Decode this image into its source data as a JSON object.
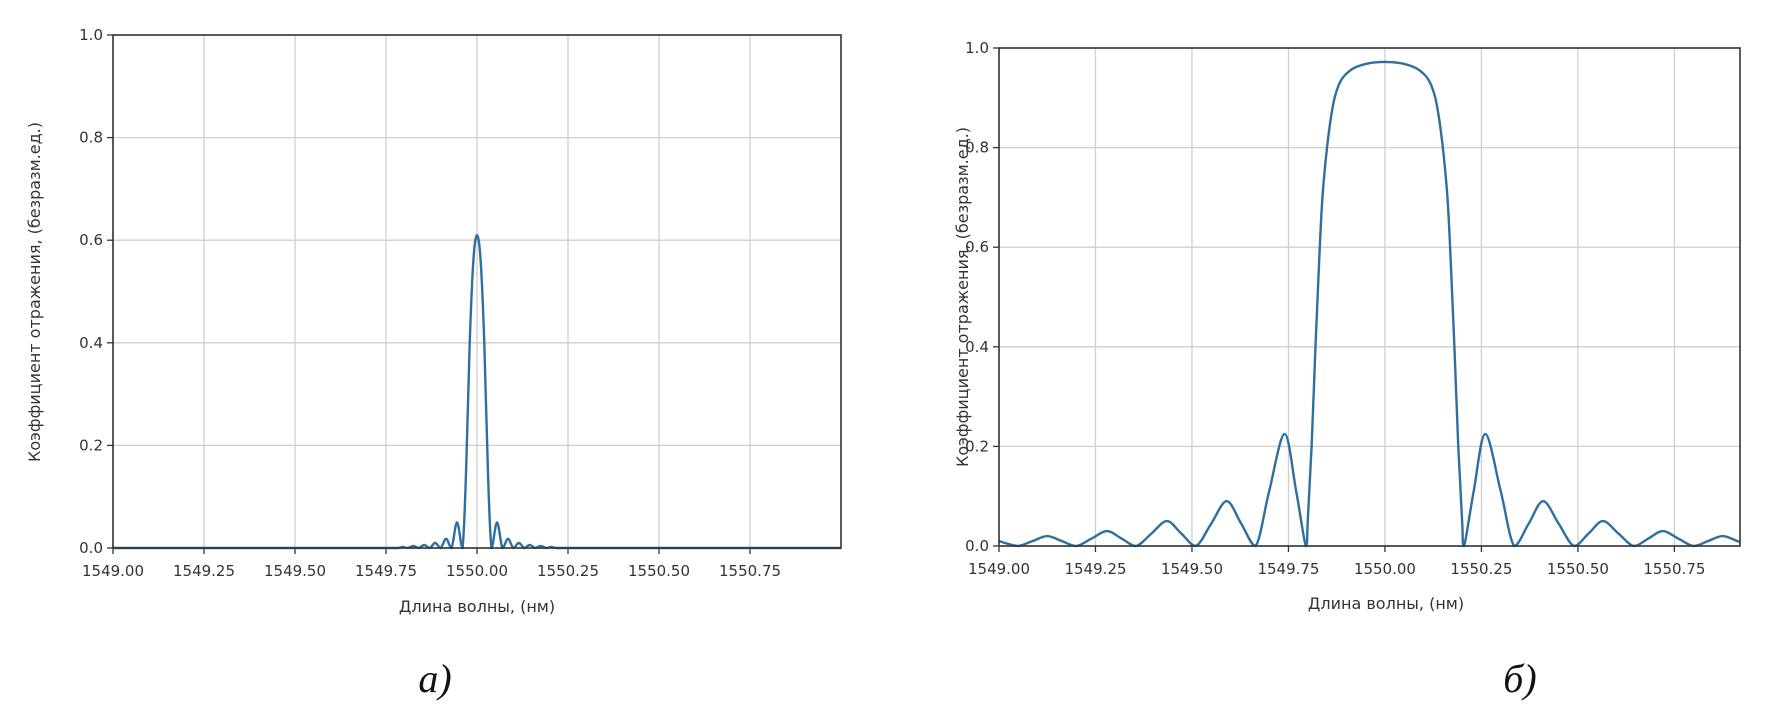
{
  "chart_data": [
    {
      "type": "line",
      "panel_label": "а)",
      "xlabel": "Длина волны, (нм)",
      "ylabel": "Коэффициент отражения, (безразм.ед.)",
      "xlim": [
        1549.0,
        1551.0
      ],
      "ylim": [
        0,
        1.0
      ],
      "xticks": [
        "1549.00",
        "1549.25",
        "1549.50",
        "1549.75",
        "1550.00",
        "1550.25",
        "1550.50",
        "1550.75"
      ],
      "yticks": [
        "0.0",
        "0.2",
        "0.4",
        "0.6",
        "0.8",
        "1.0"
      ],
      "grid": true,
      "line_color": "#2f6f9f",
      "x": [
        1549.0,
        1549.7,
        1549.78,
        1549.795,
        1549.81,
        1549.825,
        1549.84,
        1549.855,
        1549.87,
        1549.885,
        1549.9,
        1549.915,
        1549.93,
        1549.945,
        1549.96,
        1549.97,
        1549.98,
        1549.99,
        1550.0,
        1550.01,
        1550.02,
        1550.03,
        1550.04,
        1550.055,
        1550.07,
        1550.085,
        1550.1,
        1550.115,
        1550.13,
        1550.145,
        1550.16,
        1550.175,
        1550.19,
        1550.205,
        1550.22,
        1550.3,
        1551.0
      ],
      "y": [
        0,
        0,
        0,
        0.002,
        0,
        0.004,
        0,
        0.006,
        0,
        0.01,
        0,
        0.018,
        0,
        0.05,
        0,
        0.15,
        0.4,
        0.56,
        0.61,
        0.56,
        0.4,
        0.15,
        0,
        0.05,
        0,
        0.018,
        0,
        0.01,
        0,
        0.006,
        0,
        0.004,
        0,
        0.002,
        0,
        0,
        0
      ]
    },
    {
      "type": "line",
      "panel_label": "б)",
      "xlabel": "Длина волны, (нм)",
      "ylabel": "Коэффициент отражения, (безразм.ед.)",
      "xlim": [
        1549.0,
        1550.92
      ],
      "ylim": [
        0,
        1.0
      ],
      "xticks": [
        "1549.00",
        "1549.25",
        "1549.50",
        "1549.75",
        "1550.00",
        "1550.25",
        "1550.50",
        "1550.75"
      ],
      "yticks": [
        "0.0",
        "0.2",
        "0.4",
        "0.6",
        "0.8",
        "1.0"
      ],
      "grid": true,
      "line_color": "#2f6f9f",
      "x": [
        1549.0,
        1549.025,
        1549.05,
        1549.0875,
        1549.125,
        1549.1625,
        1549.2,
        1549.24,
        1549.28,
        1549.3175,
        1549.355,
        1549.395,
        1549.435,
        1549.4725,
        1549.51,
        1549.55,
        1549.59,
        1549.6275,
        1549.665,
        1549.7,
        1549.74,
        1549.77,
        1549.795,
        1549.8,
        1549.81,
        1549.82,
        1549.83,
        1549.84,
        1549.86,
        1549.88,
        1549.91,
        1549.95,
        1550.0,
        1550.05,
        1550.09,
        1550.12,
        1550.14,
        1550.16,
        1550.17,
        1550.18,
        1550.19,
        1550.2,
        1550.205,
        1550.23,
        1550.26,
        1550.3,
        1550.335,
        1550.3725,
        1550.41,
        1550.45,
        1550.49,
        1550.5275,
        1550.565,
        1550.605,
        1550.645,
        1550.6825,
        1550.72,
        1550.76,
        1550.8,
        1550.8375,
        1550.875,
        1550.9125,
        1550.92
      ],
      "y": [
        0.01,
        0.004,
        0,
        0.01,
        0.02,
        0.01,
        0,
        0.015,
        0.03,
        0.015,
        0,
        0.025,
        0.05,
        0.025,
        0,
        0.045,
        0.09,
        0.045,
        0,
        0.11,
        0.225,
        0.11,
        0,
        0.05,
        0.2,
        0.4,
        0.58,
        0.72,
        0.86,
        0.925,
        0.955,
        0.968,
        0.972,
        0.968,
        0.955,
        0.925,
        0.86,
        0.72,
        0.58,
        0.4,
        0.2,
        0.05,
        0,
        0.11,
        0.225,
        0.11,
        0,
        0.045,
        0.09,
        0.045,
        0,
        0.025,
        0.05,
        0.025,
        0,
        0.015,
        0.03,
        0.015,
        0,
        0.01,
        0.02,
        0.01,
        0.008
      ]
    }
  ]
}
